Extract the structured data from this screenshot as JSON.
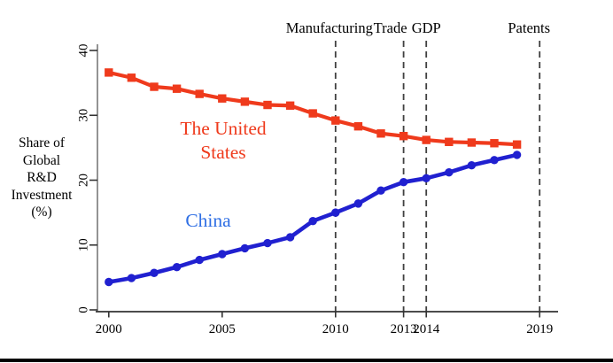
{
  "figure": {
    "background": "#ffffff",
    "bottom_rule_color": "#000000"
  },
  "chart_data": {
    "type": "line",
    "title": "",
    "xlabel": "",
    "ylabel": "Share of Global R&D Investment (%)",
    "ylabel_lines": [
      "Share of",
      "Global",
      "R&D",
      "Investment",
      "(%)"
    ],
    "x": [
      2000,
      2001,
      2002,
      2003,
      2004,
      2005,
      2006,
      2007,
      2008,
      2009,
      2010,
      2011,
      2012,
      2013,
      2014,
      2015,
      2016,
      2017,
      2018
    ],
    "series": [
      {
        "name": "The United States",
        "label_lines": [
          "The United",
          "States"
        ],
        "color": "#ef3a1c",
        "label_color": "#ef3a1c",
        "marker": "square",
        "stroke_width": 4.2,
        "values": [
          36.6,
          35.8,
          34.4,
          34.1,
          33.3,
          32.6,
          32.1,
          31.6,
          31.5,
          30.3,
          29.2,
          28.3,
          27.2,
          26.8,
          26.2,
          25.9,
          25.8,
          25.7,
          25.5
        ]
      },
      {
        "name": "China",
        "label_lines": [
          "China"
        ],
        "color": "#2020d0",
        "label_color": "#2f6fe4",
        "marker": "circle",
        "stroke_width": 4.6,
        "values": [
          4.3,
          4.9,
          5.7,
          6.6,
          7.7,
          8.6,
          9.5,
          10.3,
          11.2,
          13.7,
          15.0,
          16.4,
          18.4,
          19.7,
          20.3,
          21.2,
          22.3,
          23.1,
          23.9
        ]
      }
    ],
    "x_ticks": [
      2000,
      2005,
      2010,
      2013,
      2014,
      2019
    ],
    "y_ticks": [
      0,
      10,
      20,
      30,
      40
    ],
    "xlim": [
      1999.5,
      2019.8
    ],
    "ylim": [
      0,
      41
    ],
    "grid": false,
    "legend": "inline-labels",
    "events": [
      {
        "label": "Manufacturing",
        "year": 2010,
        "label_dx": -7
      },
      {
        "label": "Trade",
        "year": 2013,
        "label_dx": -15
      },
      {
        "label": "GDP",
        "year": 2014,
        "label_dx": 0
      },
      {
        "label": "Patents",
        "year": 2019,
        "label_dx": -12
      }
    ],
    "axis_colors": {
      "y_axis": "#808080",
      "x_axis": "#333333",
      "ticks": "#333333",
      "event_lines": "#404040"
    }
  }
}
